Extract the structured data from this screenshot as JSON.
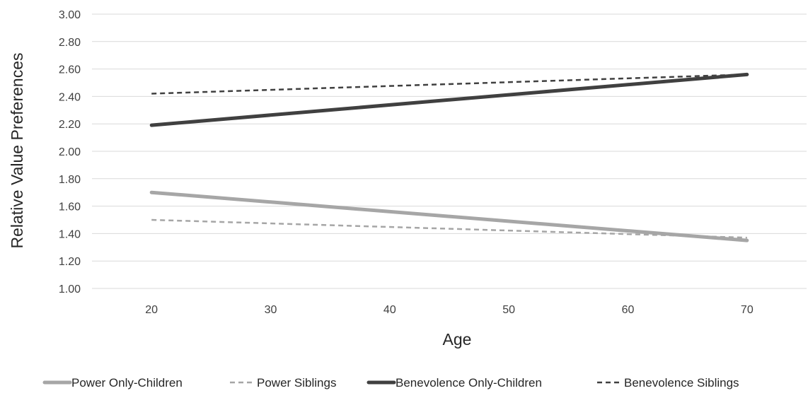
{
  "chart_data": {
    "type": "line",
    "title": "",
    "xlabel": "Age",
    "ylabel": "Relative Value Preferences",
    "x": [
      20,
      70
    ],
    "x_ticks": [
      "20",
      "30",
      "40",
      "50",
      "60",
      "70"
    ],
    "x_tick_values": [
      20,
      30,
      40,
      50,
      60,
      70
    ],
    "ylim": [
      1.0,
      3.0
    ],
    "y_ticks": [
      "1.00",
      "1.20",
      "1.40",
      "1.60",
      "1.80",
      "2.00",
      "2.20",
      "2.40",
      "2.60",
      "2.80",
      "3.00"
    ],
    "y_tick_values": [
      1.0,
      1.2,
      1.4,
      1.6,
      1.8,
      2.0,
      2.2,
      2.4,
      2.6,
      2.8,
      3.0
    ],
    "grid": true,
    "legend_position": "bottom",
    "series": [
      {
        "name": "Power Only-Children",
        "values": [
          1.7,
          1.35
        ],
        "color": "#a6a6a6",
        "style": "solid",
        "width": "thick"
      },
      {
        "name": "Power Siblings",
        "values": [
          1.5,
          1.37
        ],
        "color": "#a6a6a6",
        "style": "dashed",
        "width": "thin"
      },
      {
        "name": "Benevolence Only-Children",
        "values": [
          2.19,
          2.56
        ],
        "color": "#404040",
        "style": "solid",
        "width": "thick"
      },
      {
        "name": "Benevolence Siblings",
        "values": [
          2.42,
          2.56
        ],
        "color": "#404040",
        "style": "dashed",
        "width": "thin"
      }
    ]
  }
}
